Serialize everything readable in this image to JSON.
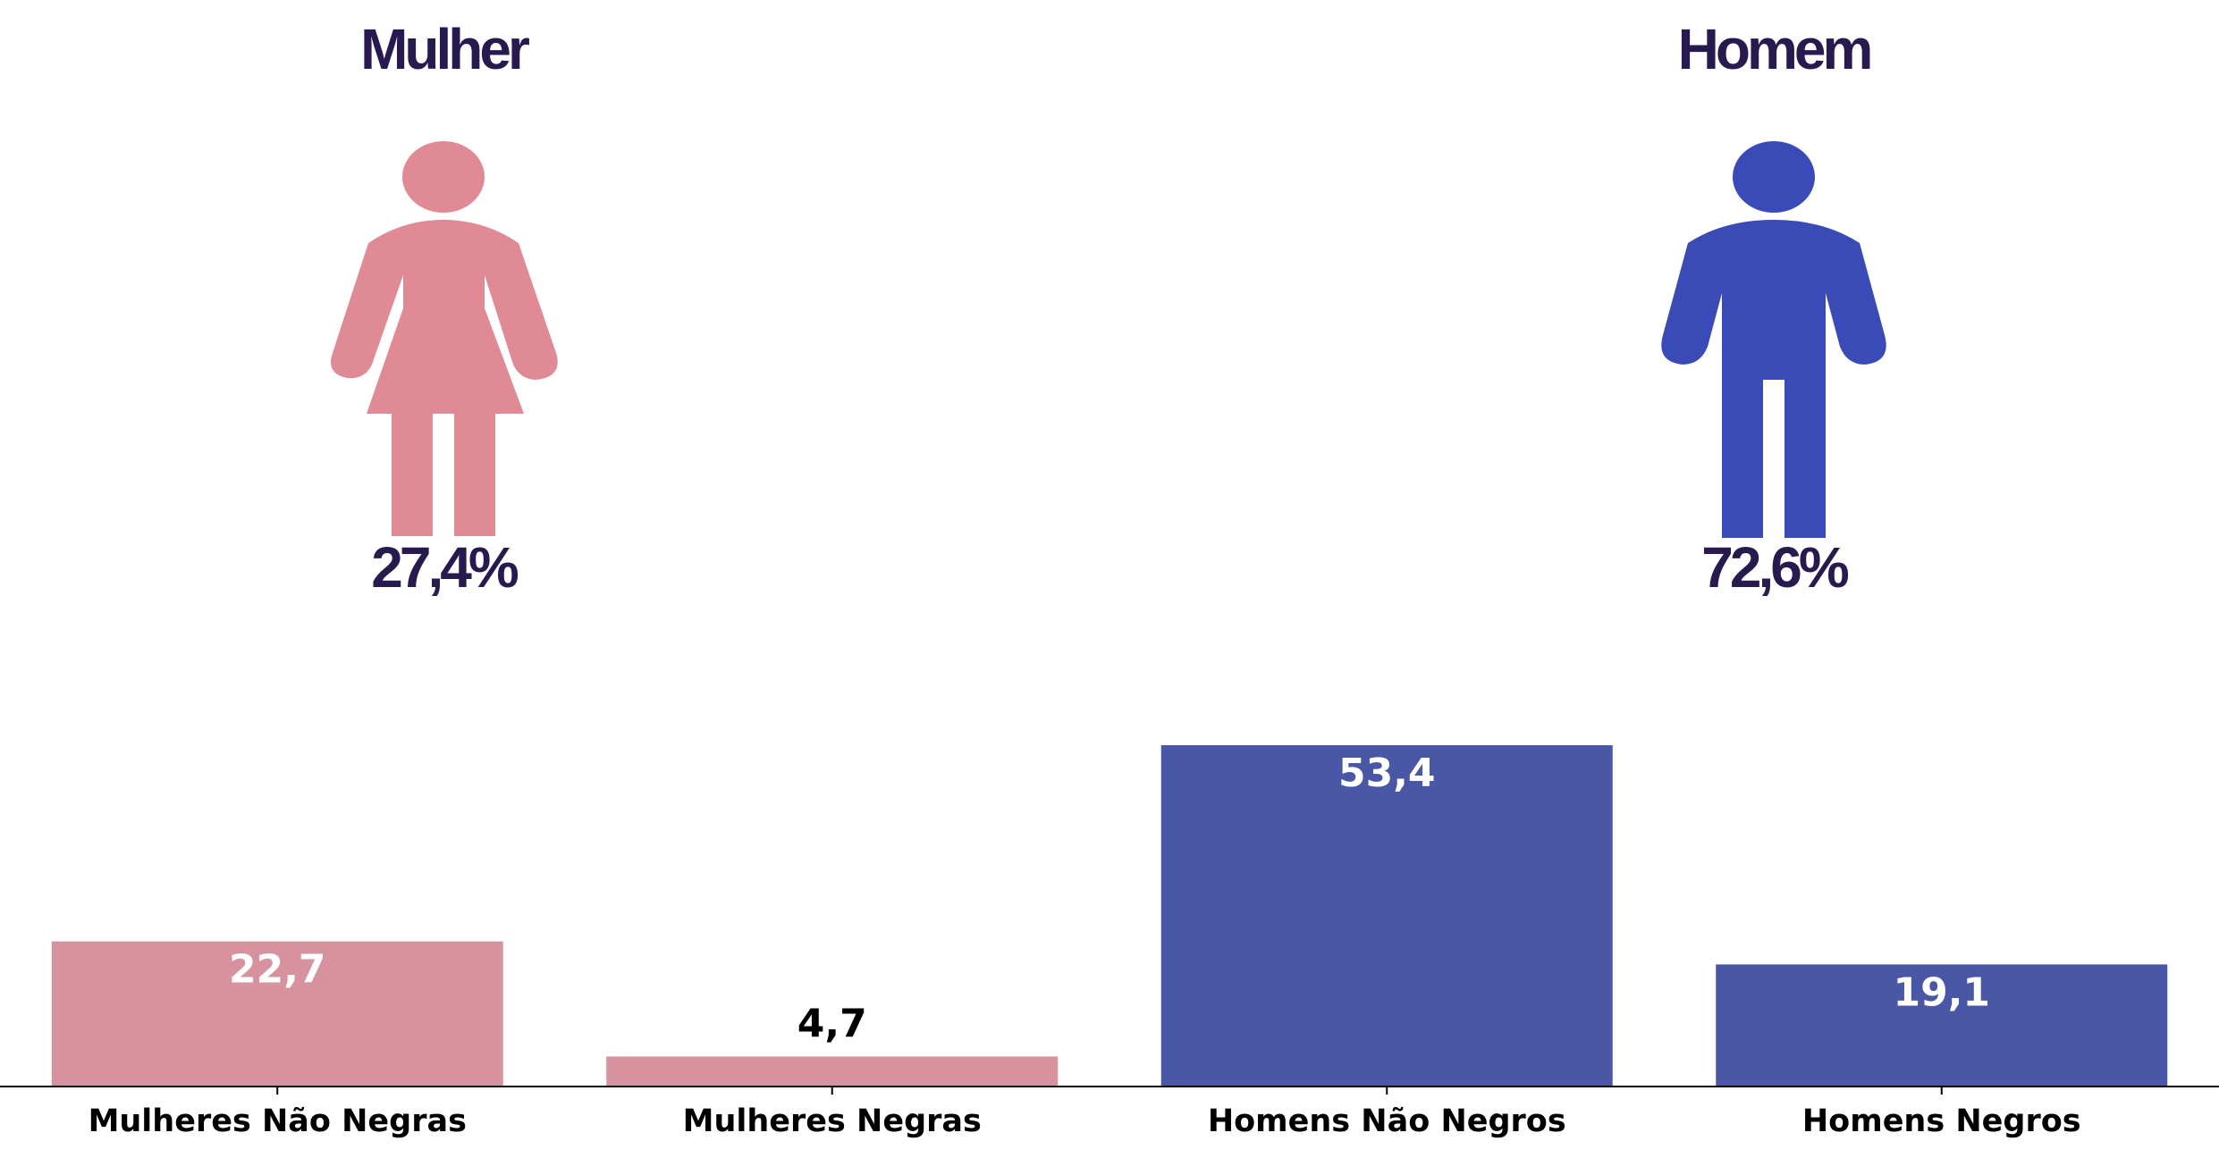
{
  "summary": {
    "female": {
      "heading": "Mulher",
      "percent": "27,4%",
      "icon": "woman-icon",
      "color": "#e08a96"
    },
    "male": {
      "heading": "Homem",
      "percent": "72,6%",
      "icon": "man-icon",
      "color": "#3a4ab6"
    }
  },
  "chart_data": {
    "type": "bar",
    "categories": [
      "Mulheres Não Negras",
      "Mulheres Negras",
      "Homens Não Negros",
      "Homens Negros"
    ],
    "values": [
      22.7,
      4.7,
      53.4,
      19.1
    ],
    "value_labels": [
      "22,7",
      "4,7",
      "53,4",
      "19,1"
    ],
    "bar_colors": [
      "#d6939f",
      "#d6939f",
      "#4a56a6",
      "#4a56a6"
    ],
    "label_colors": [
      "#ffffff",
      "#000000",
      "#ffffff",
      "#ffffff"
    ],
    "label_position": [
      "inside-top",
      "above",
      "inside-top",
      "inside-top"
    ],
    "ylim": [
      0,
      53.4
    ],
    "grid": false,
    "xlabel": "",
    "ylabel": ""
  }
}
